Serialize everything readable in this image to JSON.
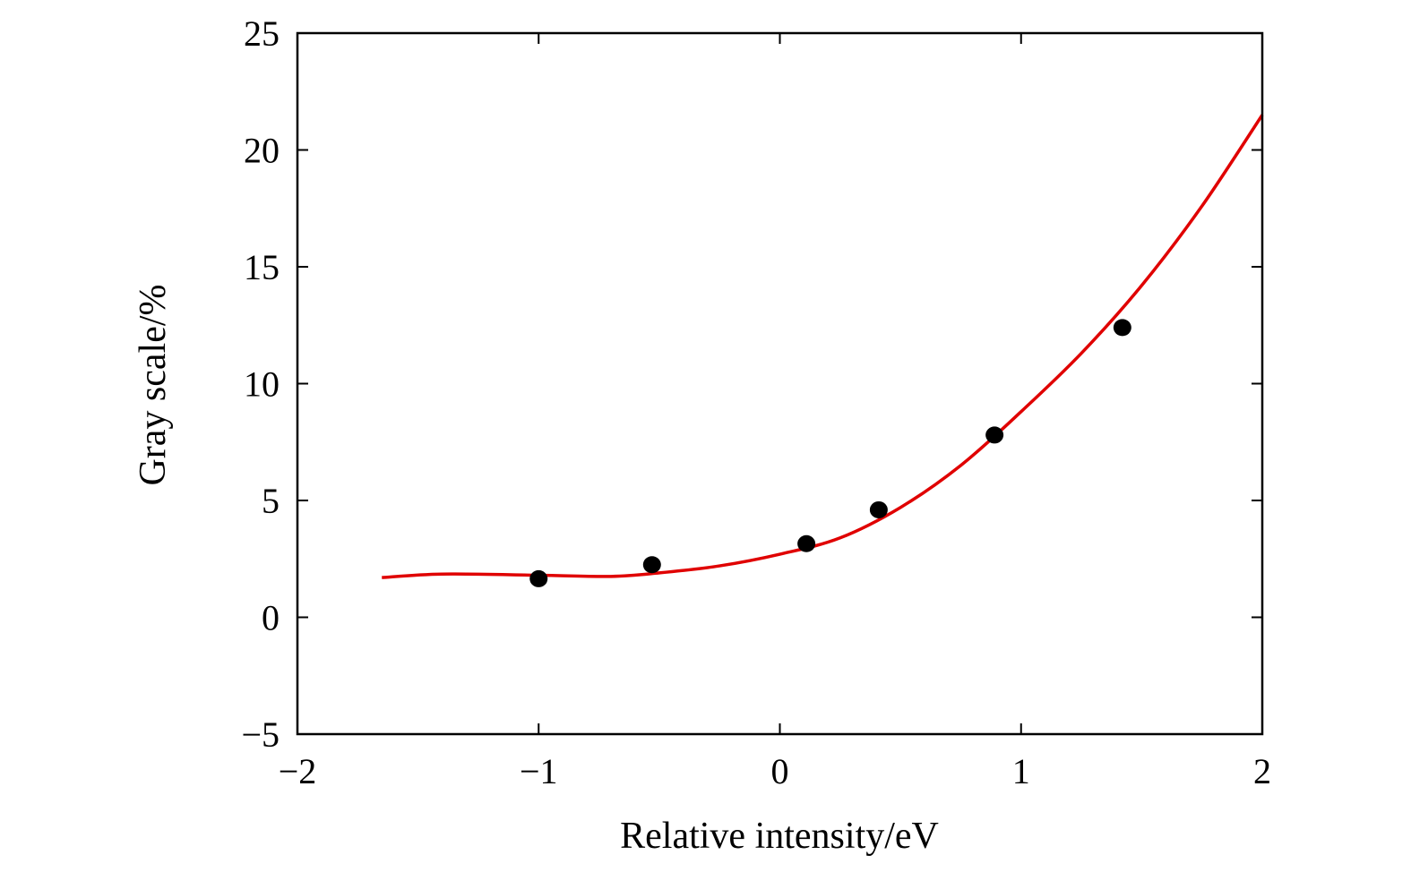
{
  "chart_data": {
    "type": "scatter",
    "title": "",
    "xlabel": "Relative intensity/eV",
    "ylabel": "Gray scale/%",
    "xlim": [
      -2,
      2
    ],
    "ylim": [
      -5,
      25
    ],
    "xticks": [
      -2,
      -1,
      0,
      1,
      2
    ],
    "xtick_labels": [
      "−2",
      "−1",
      "0",
      "1",
      "2"
    ],
    "yticks": [
      -5,
      0,
      5,
      10,
      15,
      20,
      25
    ],
    "ytick_labels": [
      "−5",
      "0",
      "5",
      "10",
      "15",
      "20",
      "25"
    ],
    "grid": false,
    "legend": "none",
    "series": [
      {
        "type": "scatter",
        "color": "#000000",
        "x": [
          -1.0,
          -0.53,
          0.11,
          0.41,
          0.89,
          1.42
        ],
        "y": [
          1.65,
          2.25,
          3.15,
          4.6,
          7.8,
          12.4
        ]
      },
      {
        "type": "line",
        "color": "#e00000",
        "x": [
          -1.65,
          -1.4,
          -1.0,
          -0.7,
          -0.5,
          -0.25,
          0.0,
          0.25,
          0.5,
          0.75,
          1.0,
          1.25,
          1.5,
          1.75,
          2.0
        ],
        "y": [
          1.7,
          1.85,
          1.8,
          1.75,
          1.9,
          2.2,
          2.7,
          3.4,
          4.7,
          6.5,
          8.8,
          11.3,
          14.2,
          17.6,
          21.5
        ]
      }
    ]
  }
}
